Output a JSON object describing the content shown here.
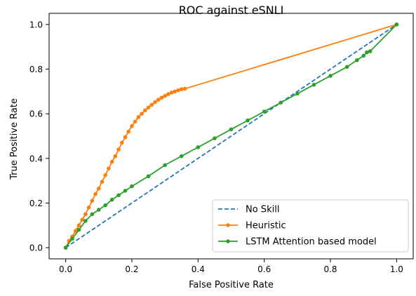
{
  "chart_data": {
    "type": "line",
    "title": "ROC against eSNLI",
    "xlabel": "False Positive Rate",
    "ylabel": "True Positive Rate",
    "xlim": [
      -0.05,
      1.05
    ],
    "ylim": [
      -0.05,
      1.05
    ],
    "xticks": [
      "0.0",
      "0.2",
      "0.4",
      "0.6",
      "0.8",
      "1.0"
    ],
    "yticks": [
      "0.0",
      "0.2",
      "0.4",
      "0.6",
      "0.8",
      "1.0"
    ],
    "grid": false,
    "legend_position": "lower-right",
    "series": [
      {
        "name": "No Skill",
        "color": "#1f77b4",
        "style": "dashed",
        "marker": "none",
        "x": [
          0.0,
          1.0
        ],
        "y": [
          0.0,
          1.0
        ]
      },
      {
        "name": "Heuristic",
        "color": "#ff7f0e",
        "style": "solid",
        "marker": "dot",
        "x": [
          0.0,
          0.01,
          0.02,
          0.03,
          0.04,
          0.05,
          0.06,
          0.07,
          0.08,
          0.09,
          0.1,
          0.11,
          0.12,
          0.13,
          0.14,
          0.15,
          0.16,
          0.17,
          0.18,
          0.19,
          0.2,
          0.21,
          0.22,
          0.23,
          0.24,
          0.25,
          0.26,
          0.27,
          0.28,
          0.29,
          0.3,
          0.31,
          0.32,
          0.33,
          0.34,
          0.35,
          0.36,
          1.0
        ],
        "y": [
          0.0,
          0.03,
          0.05,
          0.075,
          0.1,
          0.125,
          0.15,
          0.18,
          0.21,
          0.24,
          0.265,
          0.295,
          0.325,
          0.355,
          0.385,
          0.41,
          0.44,
          0.47,
          0.495,
          0.52,
          0.545,
          0.565,
          0.585,
          0.6,
          0.615,
          0.628,
          0.64,
          0.652,
          0.663,
          0.672,
          0.68,
          0.688,
          0.695,
          0.7,
          0.705,
          0.71,
          0.712,
          1.0
        ]
      },
      {
        "name": "LSTM Attention based model",
        "color": "#2ca02c",
        "style": "solid",
        "marker": "dot",
        "x": [
          0.0,
          0.02,
          0.04,
          0.06,
          0.08,
          0.1,
          0.12,
          0.14,
          0.16,
          0.18,
          0.2,
          0.25,
          0.3,
          0.35,
          0.4,
          0.45,
          0.5,
          0.55,
          0.6,
          0.65,
          0.7,
          0.75,
          0.8,
          0.85,
          0.88,
          0.9,
          0.91,
          0.92,
          1.0
        ],
        "y": [
          0.0,
          0.04,
          0.08,
          0.12,
          0.15,
          0.17,
          0.19,
          0.215,
          0.235,
          0.255,
          0.275,
          0.32,
          0.37,
          0.41,
          0.45,
          0.49,
          0.53,
          0.57,
          0.61,
          0.65,
          0.69,
          0.73,
          0.77,
          0.81,
          0.84,
          0.86,
          0.875,
          0.88,
          1.0
        ]
      }
    ]
  }
}
